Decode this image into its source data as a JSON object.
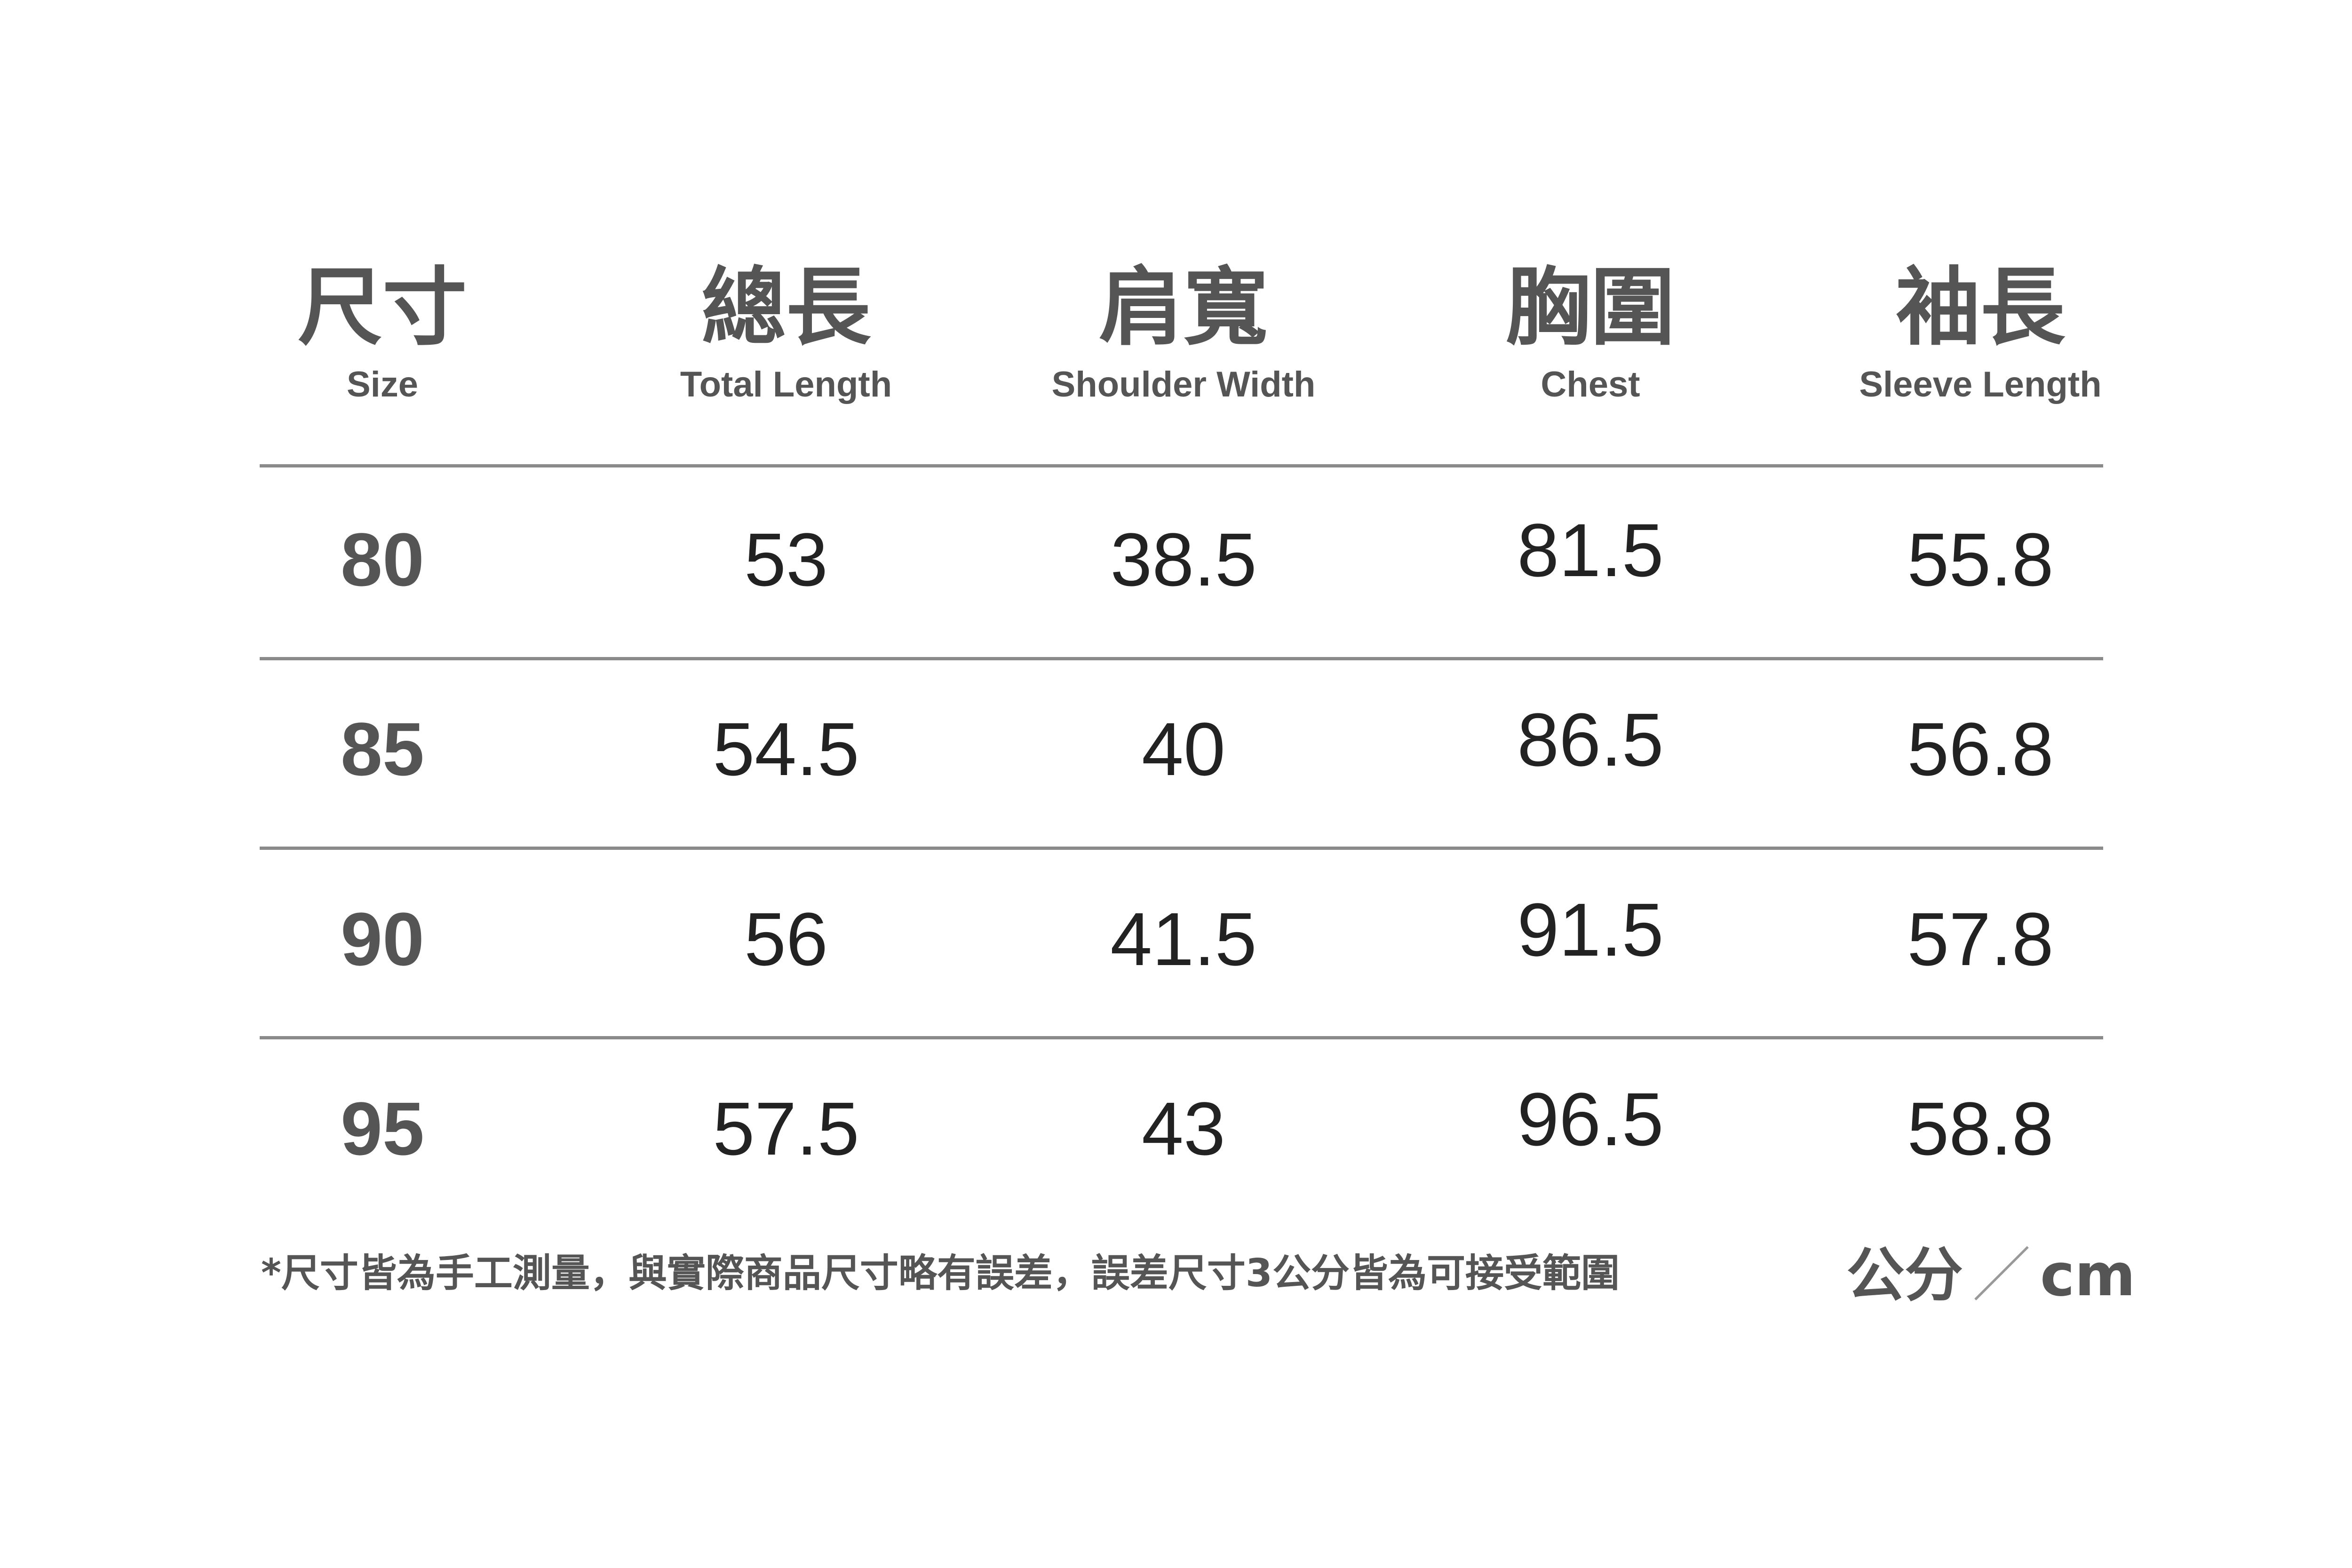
{
  "headers": [
    {
      "zh": "尺寸",
      "en": "Size"
    },
    {
      "zh": "總長",
      "en": "Total Length"
    },
    {
      "zh": "肩寬",
      "en": "Shoulder Width"
    },
    {
      "zh": "胸圍",
      "en": "Chest"
    },
    {
      "zh": "袖長",
      "en": "Sleeve Length"
    }
  ],
  "rows": [
    [
      "80",
      "53",
      "38.5",
      "81.5",
      "55.8"
    ],
    [
      "85",
      "54.5",
      "40",
      "86.5",
      "56.8"
    ],
    [
      "90",
      "56",
      "41.5",
      "91.5",
      "57.8"
    ],
    [
      "95",
      "57.5",
      "43",
      "96.5",
      "58.8"
    ]
  ],
  "footnote": "*尺寸皆為手工測量，與實際商品尺寸略有誤差，誤差尺寸3公分皆為可接受範圍",
  "unit": {
    "zh": "公分",
    "slash": "／",
    "en": "cm"
  },
  "colors": {
    "text": "#555555",
    "values": "#222222",
    "rule": "#8a8a8a"
  }
}
